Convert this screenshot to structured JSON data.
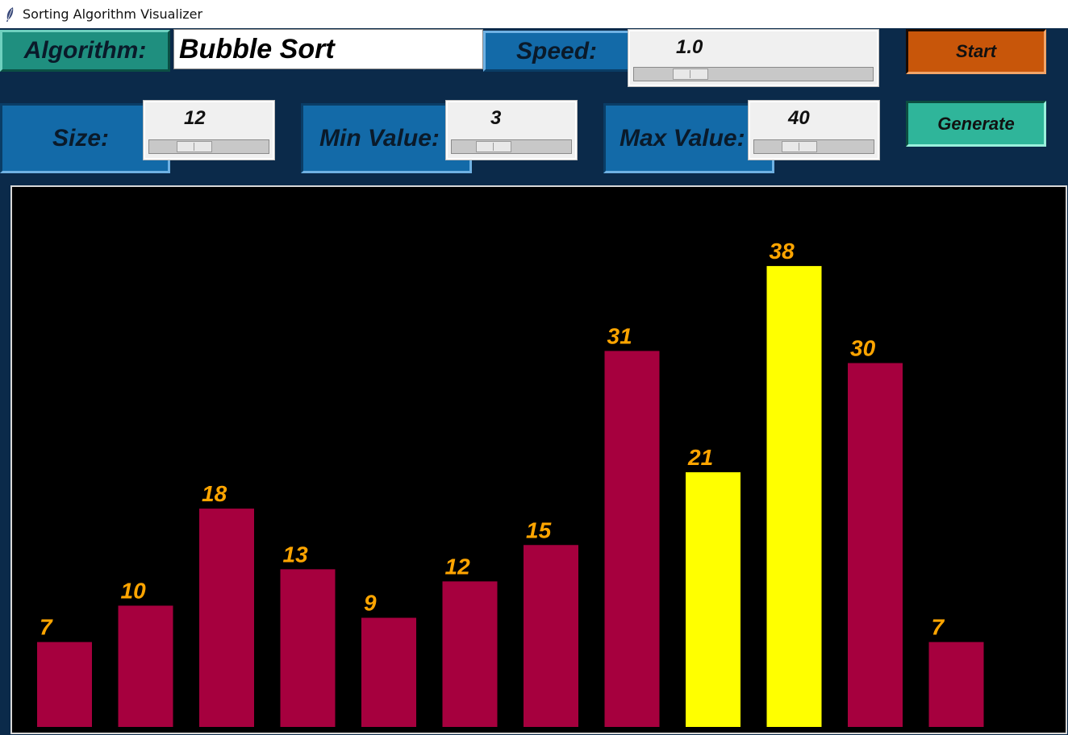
{
  "window": {
    "title": "Sorting Algorithm Visualizer",
    "icon": "feather-icon"
  },
  "controls": {
    "algorithm_label": "Algorithm:",
    "algorithm_value": "Bubble Sort",
    "speed_label": "Speed:",
    "speed_value": "1.0",
    "size_label": "Size:",
    "size_value": "12",
    "min_label": "Min Value:",
    "min_value": "3",
    "max_label": "Max Value:",
    "max_value": "40",
    "start_label": "Start",
    "generate_label": "Generate"
  },
  "colors": {
    "bar_default": "#a6003e",
    "bar_highlight": "#ffff00",
    "label": "#ffa500",
    "canvas_bg": "#000000"
  },
  "chart_data": {
    "type": "bar",
    "values": [
      7,
      10,
      18,
      13,
      9,
      12,
      15,
      31,
      21,
      38,
      30,
      7
    ],
    "highlighted_indices": [
      8,
      9
    ],
    "ylim": [
      0,
      40
    ]
  }
}
